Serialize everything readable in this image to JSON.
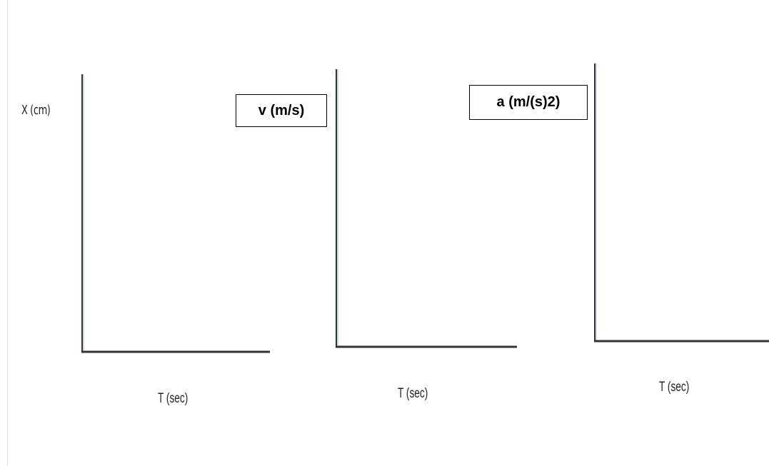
{
  "chart_data": [
    {
      "type": "line",
      "xlabel": "T (sec)",
      "ylabel": "X (cm)",
      "series": []
    },
    {
      "type": "line",
      "xlabel": "T (sec)",
      "ylabel": "v (m/s)",
      "series": []
    },
    {
      "type": "line",
      "xlabel": "T (sec)",
      "ylabel": "a (m/(s)2)",
      "series": []
    }
  ],
  "colors": {
    "axis": "#333333",
    "axis_tint": "#9fb6d6",
    "label_box_border": "#000000"
  }
}
